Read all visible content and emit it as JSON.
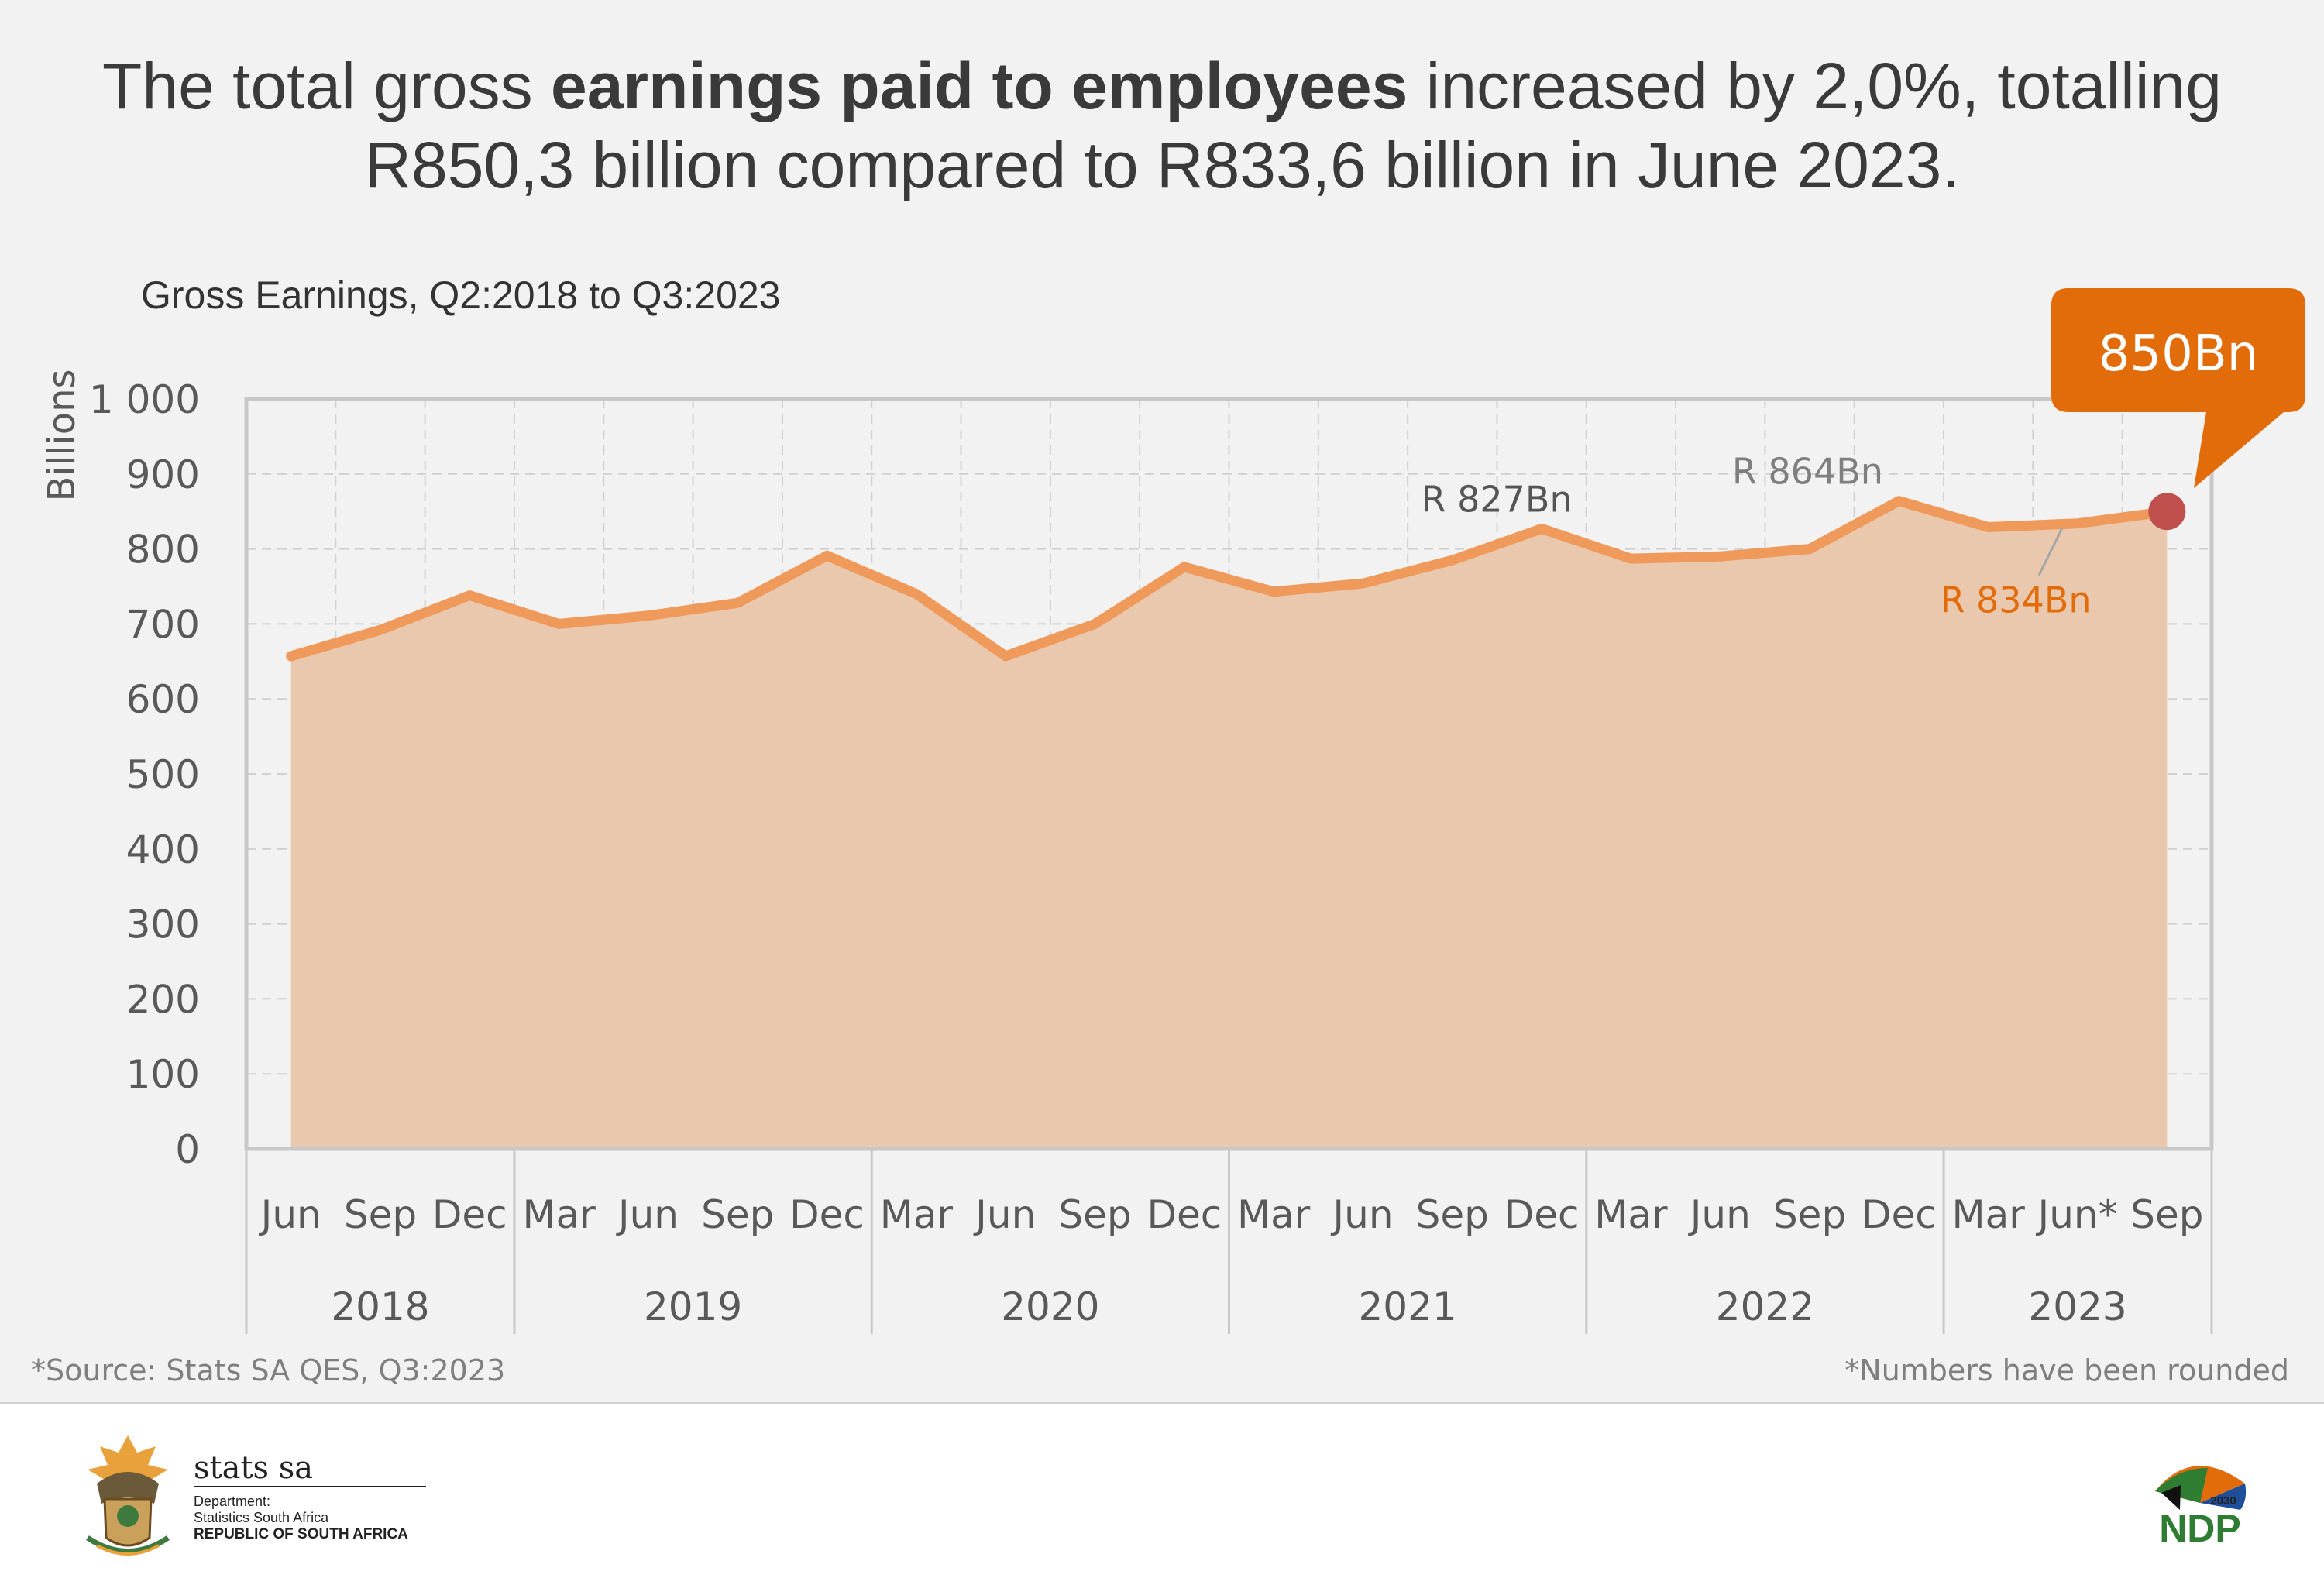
{
  "headline": {
    "part1": "The total gross ",
    "bold": "earnings paid to employees",
    "part2": " increased by 2,0%, totalling",
    "line2": "R850,3 billion compared to R833,6 billion in June 2023."
  },
  "chart_data": {
    "type": "area",
    "title": "Gross Earnings, Q2:2018 to Q3:2023",
    "ylabel": "Billions",
    "ylim": [
      0,
      1000
    ],
    "yticks": [
      0,
      100,
      200,
      300,
      400,
      500,
      600,
      700,
      800,
      900,
      1000
    ],
    "ytick_labels": [
      "0",
      "100",
      "200",
      "300",
      "400",
      "500",
      "600",
      "700",
      "800",
      "900",
      "1 000"
    ],
    "grid": true,
    "x": [
      "Jun",
      "Sep",
      "Dec",
      "Mar",
      "Jun",
      "Sep",
      "Dec",
      "Mar",
      "Jun",
      "Sep",
      "Dec",
      "Mar",
      "Jun",
      "Sep",
      "Dec",
      "Mar",
      "Jun",
      "Sep",
      "Dec",
      "Mar",
      "Jun*",
      "Sep"
    ],
    "years": [
      {
        "label": "2018",
        "count": 3
      },
      {
        "label": "2019",
        "count": 4
      },
      {
        "label": "2020",
        "count": 4
      },
      {
        "label": "2021",
        "count": 4
      },
      {
        "label": "2022",
        "count": 4
      },
      {
        "label": "2023",
        "count": 3
      }
    ],
    "values": [
      657,
      692,
      738,
      700,
      711,
      728,
      791,
      740,
      657,
      700,
      776,
      743,
      754,
      785,
      827,
      787,
      790,
      800,
      864,
      829,
      834,
      850
    ],
    "annotations": [
      {
        "text": "R 827Bn",
        "index": 14,
        "color": "#555555"
      },
      {
        "text": "R 864Bn",
        "index": 18,
        "color": "#7f7f7f"
      },
      {
        "text": "R 834Bn",
        "index": 20,
        "color": "#e36c0a"
      }
    ],
    "callout": {
      "text": "850Bn",
      "index": 21
    },
    "colors": {
      "line": "#ef9a5b",
      "fill": "#e9c8ae",
      "marker": "#c0504d",
      "callout": "#e36c0a"
    }
  },
  "footer": {
    "source": "*Source: Stats SA QES, Q3:2023",
    "note": "*Numbers have been rounded",
    "org_name": "stats sa",
    "dept_line1": "Department:",
    "dept_line2": "Statistics South Africa",
    "country": "REPUBLIC OF SOUTH AFRICA",
    "ndp_text": "NDP",
    "ndp_year": "2030"
  }
}
